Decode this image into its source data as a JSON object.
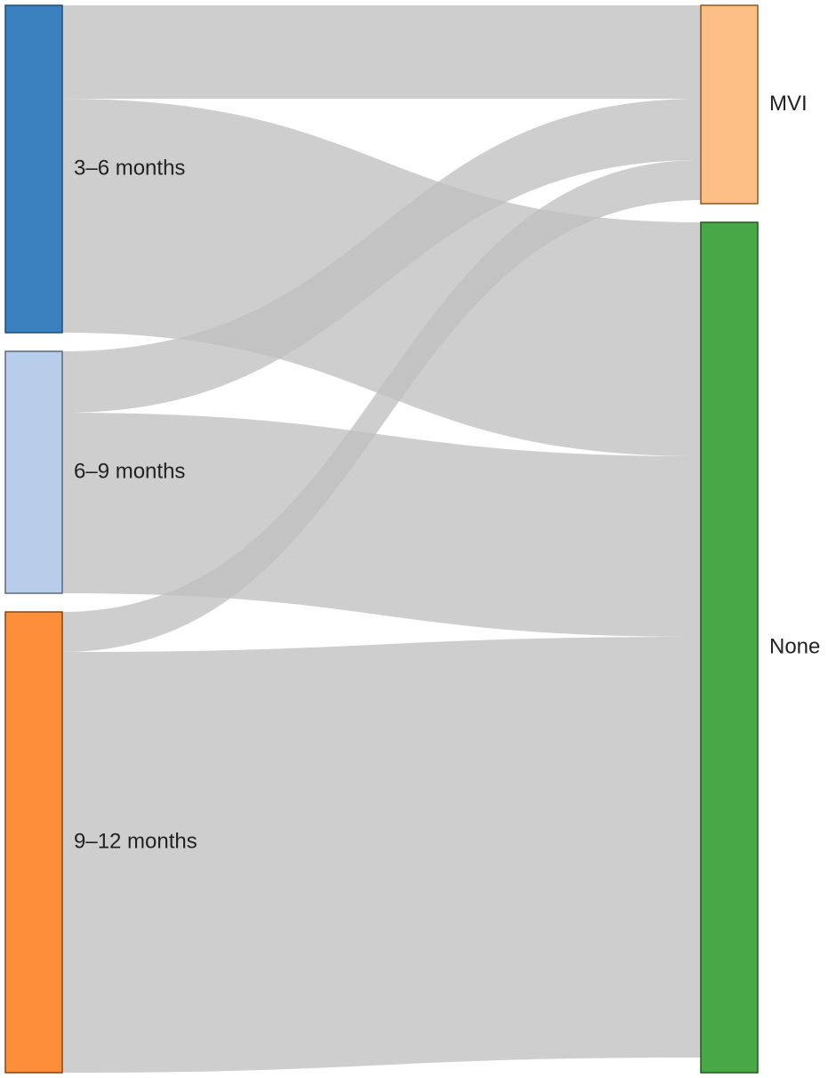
{
  "chart_data": {
    "type": "sankey",
    "sources": [
      {
        "id": "3_6",
        "label": "3–6 months",
        "color": "#3a80bf",
        "stroke": "#1f4e79"
      },
      {
        "id": "6_9",
        "label": "6–9 months",
        "color": "#b8cdea",
        "stroke": "#5a6a80"
      },
      {
        "id": "9_12",
        "label": "9–12 months",
        "color": "#fd8e3a",
        "stroke": "#8a4410"
      }
    ],
    "targets": [
      {
        "id": "mvi",
        "label": "MVI",
        "color": "#fdbf85",
        "stroke": "#8a5a20"
      },
      {
        "id": "none",
        "label": "None",
        "color": "#48a846",
        "stroke": "#1f5a1d"
      }
    ],
    "links": [
      {
        "source": "3_6",
        "target": "mvi",
        "value": 105
      },
      {
        "source": "3_6",
        "target": "none",
        "value": 263
      },
      {
        "source": "6_9",
        "target": "mvi",
        "value": 69
      },
      {
        "source": "6_9",
        "target": "none",
        "value": 203
      },
      {
        "source": "9_12",
        "target": "mvi",
        "value": 45
      },
      {
        "source": "9_12",
        "target": "none",
        "value": 473
      }
    ],
    "link_color": "#c0c0c0"
  }
}
